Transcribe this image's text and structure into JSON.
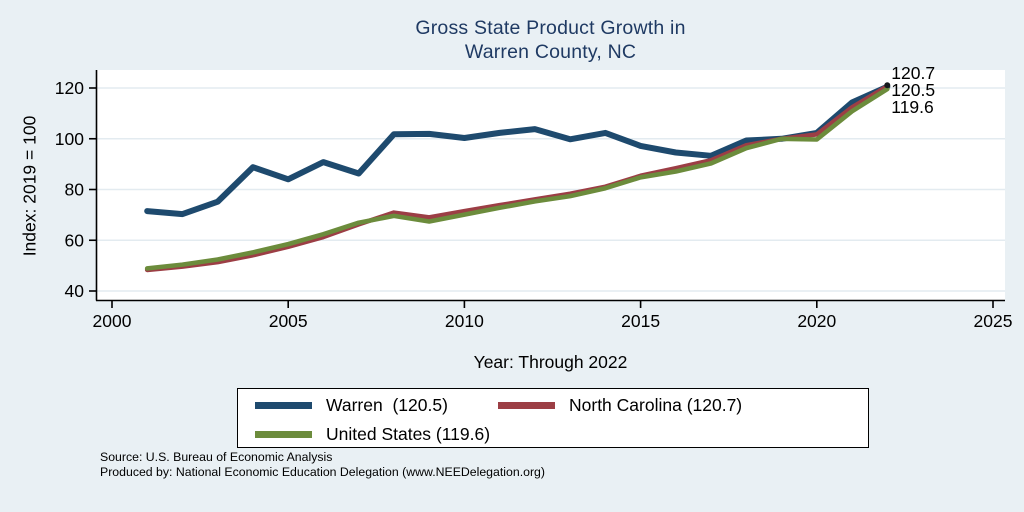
{
  "title": {
    "line1": "Gross State Product Growth in",
    "line2": "Warren County, NC"
  },
  "y_axis_label": "Index: 2019 = 100",
  "x_axis_label": "Year: Through 2022",
  "legend": {
    "items": [
      {
        "label": "Warren  (120.5)",
        "color": "#1e4a6e"
      },
      {
        "label": "North Carolina (120.7)",
        "color": "#9c3e45"
      },
      {
        "label": "United States (119.6)",
        "color": "#6c8c3c"
      }
    ]
  },
  "footer": {
    "source": "Source: U.S. Bureau of Economic Analysis",
    "produced_by": "Produced by: National Economic Education Delegation (www.NEEDelegation.org)"
  },
  "chart_data": {
    "type": "line",
    "title": "Gross State Product Growth in Warren County, NC",
    "xlabel": "Year: Through 2022",
    "ylabel": "Index: 2019 = 100",
    "x": [
      2001,
      2002,
      2003,
      2004,
      2005,
      2006,
      2007,
      2008,
      2009,
      2010,
      2011,
      2012,
      2013,
      2014,
      2015,
      2016,
      2017,
      2018,
      2019,
      2020,
      2021,
      2022
    ],
    "series": [
      {
        "name": "Warren",
        "color": "#1e4a6e",
        "line_width": 6,
        "end_label": "120.5",
        "values": [
          71.5,
          70.3,
          75.2,
          88.8,
          84.0,
          90.8,
          86.3,
          101.8,
          101.9,
          100.3,
          102.3,
          103.8,
          99.8,
          102.3,
          97.2,
          94.6,
          93.3,
          99.3,
          100.0,
          102.3,
          114.3,
          120.5
        ]
      },
      {
        "name": "North Carolina",
        "color": "#9c3e45",
        "line_width": 4.6,
        "end_label": "120.7",
        "values": [
          48.3,
          49.6,
          51.4,
          54.1,
          57.4,
          61.3,
          66.3,
          70.9,
          69.0,
          71.5,
          73.8,
          76.1,
          78.3,
          81.1,
          85.4,
          88.4,
          91.5,
          97.4,
          100.0,
          101.7,
          112.4,
          120.7
        ]
      },
      {
        "name": "United States",
        "color": "#6c8c3c",
        "line_width": 4.6,
        "end_label": "119.6",
        "values": [
          48.9,
          50.4,
          52.4,
          55.2,
          58.5,
          62.4,
          66.9,
          69.6,
          67.4,
          70.1,
          72.8,
          75.3,
          77.4,
          80.5,
          84.8,
          87.1,
          90.3,
          96.3,
          100.0,
          99.7,
          110.8,
          119.6
        ]
      }
    ],
    "x_ticks": [
      2000,
      2005,
      2010,
      2015,
      2020,
      2025
    ],
    "y_ticks": [
      40,
      60,
      80,
      100,
      120
    ],
    "xlim": [
      2000,
      2025
    ],
    "ylim": [
      36.5,
      127
    ],
    "grid": "horizontal",
    "legend_position": "bottom",
    "end_labels": [
      {
        "text": "120.7",
        "y_center": 73
      },
      {
        "text": "120.5",
        "y_center": 90
      },
      {
        "text": "119.6",
        "y_center": 107
      }
    ]
  }
}
